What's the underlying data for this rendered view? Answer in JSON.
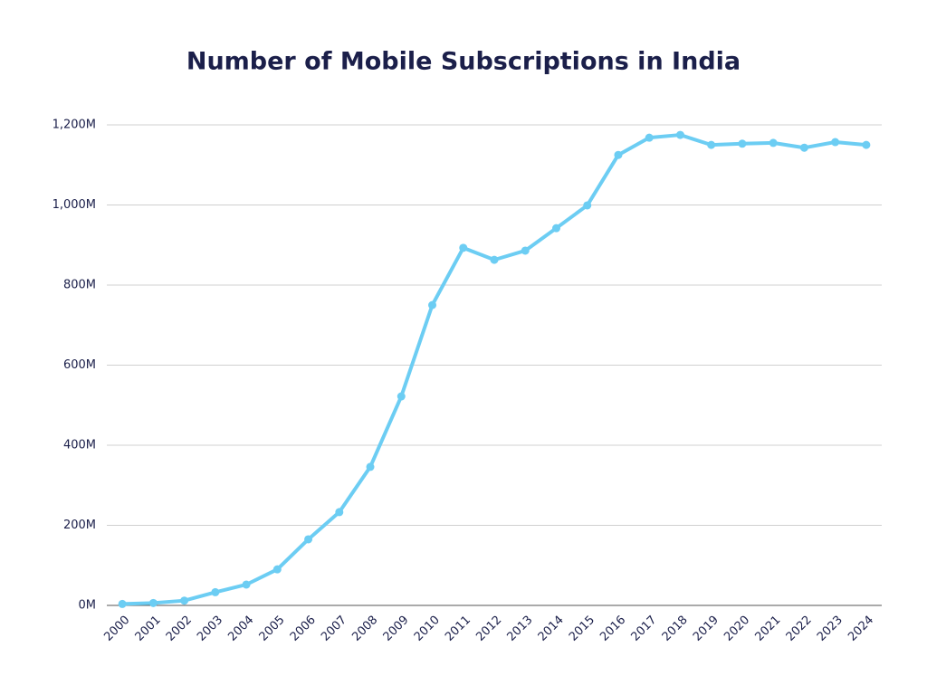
{
  "chart_data": {
    "type": "line",
    "title": "Number of Mobile Subscriptions in India",
    "categories": [
      "2000",
      "2001",
      "2002",
      "2003",
      "2004",
      "2005",
      "2006",
      "2007",
      "2008",
      "2009",
      "2010",
      "2011",
      "2012",
      "2013",
      "2014",
      "2015",
      "2016",
      "2017",
      "2018",
      "2019",
      "2020",
      "2021",
      "2022",
      "2023",
      "2024"
    ],
    "series": [
      {
        "name": "Mobile subscriptions",
        "color": "#6ccdf3",
        "values": [
          3.6,
          6,
          12,
          33,
          52,
          90,
          165,
          233,
          346,
          522,
          750,
          893,
          863,
          886,
          942,
          999,
          1125,
          1168,
          1175,
          1150,
          1153,
          1155,
          1143,
          1157,
          1150
        ]
      }
    ],
    "ylim": [
      0,
      1200
    ],
    "yticks": [
      {
        "value": 0,
        "label": "0M"
      },
      {
        "value": 200,
        "label": "200M"
      },
      {
        "value": 400,
        "label": "400M"
      },
      {
        "value": 600,
        "label": "600M"
      },
      {
        "value": 800,
        "label": "800M"
      },
      {
        "value": 1000,
        "label": "1,000M"
      },
      {
        "value": 1200,
        "label": "1,200M"
      }
    ],
    "grid": true
  }
}
